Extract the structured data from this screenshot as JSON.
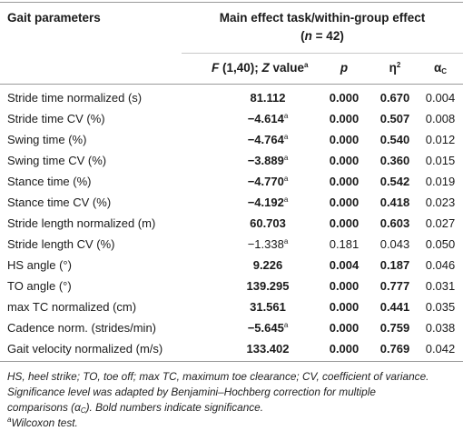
{
  "header": {
    "col1": "Gait parameters",
    "main_effect": "Main effect task/within-group effect",
    "n_label": "(n = 42)",
    "f_label": "F (1,40); Z value",
    "f_sup": "a",
    "p_label": "p",
    "eta_label": "η",
    "eta_sup": "2",
    "alpha_label": "α",
    "alpha_sub": "C"
  },
  "rows": [
    {
      "param": "Stride time normalized (s)",
      "f": "81.112",
      "f_sup": "",
      "f_bold": true,
      "p": "0.000",
      "p_bold": true,
      "eta": "0.670",
      "eta_bold": true,
      "alpha": "0.004"
    },
    {
      "param": "Stride time CV (%)",
      "f": "−4.614",
      "f_sup": "a",
      "f_bold": true,
      "p": "0.000",
      "p_bold": true,
      "eta": "0.507",
      "eta_bold": true,
      "alpha": "0.008"
    },
    {
      "param": "Swing time (%)",
      "f": "−4.764",
      "f_sup": "a",
      "f_bold": true,
      "p": "0.000",
      "p_bold": true,
      "eta": "0.540",
      "eta_bold": true,
      "alpha": "0.012"
    },
    {
      "param": "Swing time CV (%)",
      "f": "−3.889",
      "f_sup": "a",
      "f_bold": true,
      "p": "0.000",
      "p_bold": true,
      "eta": "0.360",
      "eta_bold": true,
      "alpha": "0.015"
    },
    {
      "param": "Stance time (%)",
      "f": "−4.770",
      "f_sup": "a",
      "f_bold": true,
      "p": "0.000",
      "p_bold": true,
      "eta": "0.542",
      "eta_bold": true,
      "alpha": "0.019"
    },
    {
      "param": "Stance time CV (%)",
      "f": "−4.192",
      "f_sup": "a",
      "f_bold": true,
      "p": "0.000",
      "p_bold": true,
      "eta": "0.418",
      "eta_bold": true,
      "alpha": "0.023"
    },
    {
      "param": "Stride length normalized (m)",
      "f": "60.703",
      "f_sup": "",
      "f_bold": true,
      "p": "0.000",
      "p_bold": true,
      "eta": "0.603",
      "eta_bold": true,
      "alpha": "0.027"
    },
    {
      "param": "Stride length CV (%)",
      "f": "−1.338",
      "f_sup": "a",
      "f_bold": false,
      "p": "0.181",
      "p_bold": false,
      "eta": "0.043",
      "eta_bold": false,
      "alpha": "0.050"
    },
    {
      "param": "HS angle (°)",
      "f": "9.226",
      "f_sup": "",
      "f_bold": true,
      "p": "0.004",
      "p_bold": true,
      "eta": "0.187",
      "eta_bold": true,
      "alpha": "0.046"
    },
    {
      "param": "TO angle (°)",
      "f": "139.295",
      "f_sup": "",
      "f_bold": true,
      "p": "0.000",
      "p_bold": true,
      "eta": "0.777",
      "eta_bold": true,
      "alpha": "0.031"
    },
    {
      "param": "max TC normalized (cm)",
      "f": "31.561",
      "f_sup": "",
      "f_bold": true,
      "p": "0.000",
      "p_bold": true,
      "eta": "0.441",
      "eta_bold": true,
      "alpha": "0.035"
    },
    {
      "param": "Cadence norm. (strides/min)",
      "f": "−5.645",
      "f_sup": "a",
      "f_bold": true,
      "p": "0.000",
      "p_bold": true,
      "eta": "0.759",
      "eta_bold": true,
      "alpha": "0.038"
    },
    {
      "param": "Gait velocity normalized (m/s)",
      "f": "133.402",
      "f_sup": "",
      "f_bold": true,
      "p": "0.000",
      "p_bold": true,
      "eta": "0.769",
      "eta_bold": true,
      "alpha": "0.042"
    }
  ],
  "footnotes": {
    "line1": "HS, heel strike; TO, toe off; max TC, maximum toe clearance; CV, coefficient of variance.",
    "line2": "Significance level was adapted by Benjamini–Hochberg correction for multiple",
    "line3_pre": "comparisons (α",
    "line3_sub": "C",
    "line3_post": "). Bold numbers indicate significance.",
    "wilcoxon_sup": "a",
    "wilcoxon": "Wilcoxon test."
  }
}
